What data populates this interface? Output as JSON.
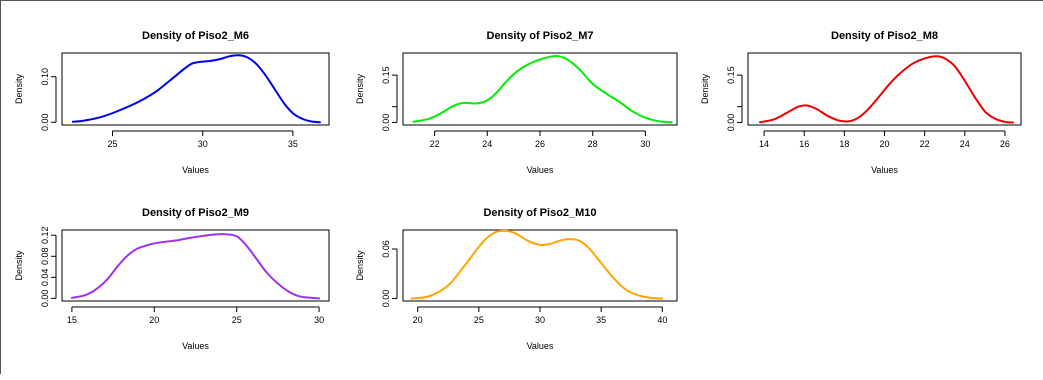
{
  "figure": {
    "background": "#ffffff",
    "line_color": "#000000"
  },
  "chart_data": [
    {
      "type": "line",
      "title": "Density of Piso2_M6",
      "xlabel": "Values",
      "ylabel": "Density",
      "xlim": [
        22.2,
        37.0
      ],
      "ylim": [
        -0.006,
        0.152
      ],
      "xticks": [
        25,
        30,
        35
      ],
      "yticks": [
        0.0,
        0.1
      ],
      "ytick_labels": [
        "0.00",
        "0.10"
      ],
      "color": "#0000ee",
      "x": [
        22.8,
        23.5,
        24.5,
        25.5,
        26.5,
        27.5,
        28.5,
        29.0,
        29.5,
        30.5,
        31.0,
        31.5,
        32.0,
        32.5,
        33.0,
        33.5,
        34.0,
        34.5,
        35.0,
        35.5,
        36.0,
        36.5
      ],
      "y": [
        0.001,
        0.004,
        0.013,
        0.028,
        0.046,
        0.07,
        0.102,
        0.118,
        0.13,
        0.135,
        0.139,
        0.145,
        0.147,
        0.142,
        0.127,
        0.102,
        0.072,
        0.042,
        0.02,
        0.008,
        0.002,
        0.0
      ]
    },
    {
      "type": "line",
      "title": "Density of Piso2_M7",
      "xlabel": "Values",
      "ylabel": "Density",
      "xlim": [
        20.8,
        31.2
      ],
      "ylim": [
        -0.008,
        0.22
      ],
      "xticks": [
        22,
        24,
        26,
        28,
        30
      ],
      "yticks": [
        0.0,
        0.05,
        0.15
      ],
      "ytick_labels": [
        "0.00",
        "",
        "0.15"
      ],
      "color": "#00ee00",
      "x": [
        21.2,
        21.8,
        22.3,
        22.7,
        23.1,
        23.5,
        23.9,
        24.3,
        24.7,
        25.1,
        25.6,
        26.1,
        26.5,
        26.8,
        27.1,
        27.5,
        28.0,
        28.5,
        29.0,
        29.5,
        30.0,
        30.5,
        31.0
      ],
      "y": [
        0.002,
        0.012,
        0.032,
        0.052,
        0.062,
        0.06,
        0.066,
        0.09,
        0.128,
        0.16,
        0.186,
        0.202,
        0.21,
        0.208,
        0.196,
        0.168,
        0.122,
        0.092,
        0.066,
        0.036,
        0.015,
        0.004,
        0.001
      ]
    },
    {
      "type": "line",
      "title": "Density of Piso2_M8",
      "xlabel": "Values",
      "ylabel": "Density",
      "xlim": [
        13.2,
        26.8
      ],
      "ylim": [
        -0.008,
        0.22
      ],
      "xticks": [
        14,
        16,
        18,
        20,
        22,
        24,
        26
      ],
      "yticks": [
        0.0,
        0.05,
        0.15
      ],
      "ytick_labels": [
        "0.00",
        "",
        "0.15"
      ],
      "color": "#ee0000",
      "x": [
        13.8,
        14.5,
        15.2,
        15.7,
        16.1,
        16.6,
        17.2,
        17.8,
        18.4,
        19.0,
        19.6,
        20.2,
        20.8,
        21.4,
        22.0,
        22.6,
        23.0,
        23.5,
        24.0,
        24.5,
        25.0,
        25.5,
        26.0,
        26.4
      ],
      "y": [
        0.001,
        0.01,
        0.033,
        0.05,
        0.054,
        0.043,
        0.02,
        0.005,
        0.006,
        0.03,
        0.072,
        0.118,
        0.157,
        0.186,
        0.203,
        0.21,
        0.203,
        0.178,
        0.132,
        0.08,
        0.035,
        0.012,
        0.002,
        0.0
      ]
    },
    {
      "type": "line",
      "title": "Density of Piso2_M9",
      "xlabel": "Values",
      "ylabel": "Density",
      "xlim": [
        14.4,
        30.6
      ],
      "ylim": [
        -0.005,
        0.13
      ],
      "xticks": [
        15,
        20,
        25,
        30
      ],
      "yticks": [
        0.0,
        0.04,
        0.08,
        0.12
      ],
      "ytick_labels": [
        "0.00",
        "0.04",
        "0.08",
        "0.12"
      ],
      "color": "#a030f0",
      "x": [
        15.0,
        15.8,
        16.5,
        17.2,
        17.8,
        18.4,
        19.0,
        19.8,
        20.5,
        21.3,
        22.0,
        22.8,
        23.5,
        24.3,
        25.0,
        25.6,
        26.2,
        26.8,
        27.5,
        28.2,
        28.8,
        29.5,
        30.0
      ],
      "y": [
        0.001,
        0.006,
        0.018,
        0.038,
        0.062,
        0.082,
        0.095,
        0.103,
        0.107,
        0.11,
        0.114,
        0.118,
        0.121,
        0.122,
        0.118,
        0.1,
        0.075,
        0.05,
        0.028,
        0.012,
        0.004,
        0.001,
        0.0
      ]
    },
    {
      "type": "line",
      "title": "Density of Piso2_M10",
      "xlabel": "Values",
      "ylabel": "Density",
      "xlim": [
        18.8,
        41.2
      ],
      "ylim": [
        -0.003,
        0.083
      ],
      "xticks": [
        20,
        25,
        30,
        35,
        40
      ],
      "yticks": [
        0.0,
        0.06
      ],
      "ytick_labels": [
        "0.00",
        "0.06"
      ],
      "color": "#ffa500",
      "x": [
        19.5,
        21.0,
        22.5,
        24.0,
        25.3,
        26.3,
        27.2,
        28.0,
        29.0,
        30.0,
        30.8,
        31.6,
        32.4,
        33.2,
        34.0,
        35.0,
        36.0,
        37.0,
        38.0,
        39.0,
        40.0
      ],
      "y": [
        0.0,
        0.003,
        0.016,
        0.043,
        0.068,
        0.08,
        0.082,
        0.079,
        0.07,
        0.065,
        0.066,
        0.07,
        0.072,
        0.07,
        0.061,
        0.043,
        0.025,
        0.011,
        0.004,
        0.001,
        0.0
      ]
    }
  ]
}
